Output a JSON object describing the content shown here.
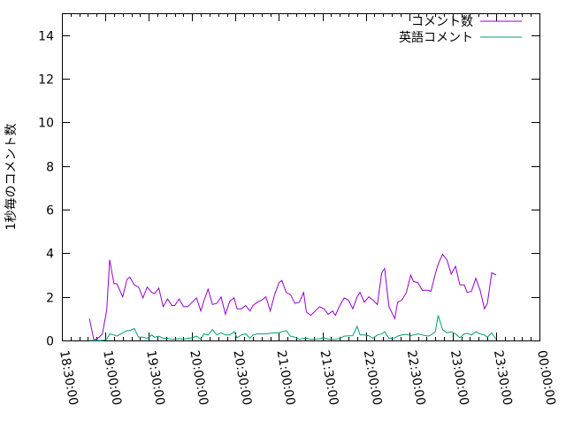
{
  "chart_data": {
    "type": "line",
    "title": "",
    "xlabel": "",
    "ylabel": "1秒毎のコメント数",
    "xlim": [
      "18:30:00",
      "00:00:00"
    ],
    "ylim": [
      0,
      15
    ],
    "x_ticks": [
      "18:30:00",
      "19:00:00",
      "19:30:00",
      "20:00:00",
      "20:30:00",
      "21:00:00",
      "21:30:00",
      "22:00:00",
      "22:30:00",
      "23:00:00",
      "23:30:00",
      "00:00:00"
    ],
    "y_ticks": [
      "0",
      "2",
      "4",
      "6",
      "8",
      "10",
      "12",
      "14"
    ],
    "grid": false,
    "legend_position": "top-right",
    "x": [
      "18:49",
      "18:52",
      "18:54",
      "18:58",
      "19:01",
      "19:03",
      "19:06",
      "19:08",
      "19:12",
      "19:15",
      "19:17",
      "19:20",
      "19:23",
      "19:26",
      "19:29",
      "19:32",
      "19:34",
      "19:37",
      "19:40",
      "19:43",
      "19:46",
      "19:48",
      "19:51",
      "19:54",
      "19:57",
      "20:00",
      "20:03",
      "20:06",
      "20:08",
      "20:11",
      "20:14",
      "20:17",
      "20:20",
      "20:23",
      "20:26",
      "20:29",
      "20:31",
      "20:34",
      "20:37",
      "20:40",
      "20:42",
      "20:45",
      "20:48",
      "20:51",
      "20:54",
      "20:57",
      "21:00",
      "21:02",
      "21:05",
      "21:08",
      "21:11",
      "21:14",
      "21:17",
      "21:19",
      "21:22",
      "21:25",
      "21:28",
      "21:31",
      "21:34",
      "21:37",
      "21:39",
      "21:42",
      "21:45",
      "21:48",
      "21:51",
      "21:54",
      "21:56",
      "21:59",
      "22:02",
      "22:05",
      "22:08",
      "22:11",
      "22:13",
      "22:16",
      "22:20",
      "22:22",
      "22:25",
      "22:28",
      "22:31",
      "22:33",
      "22:36",
      "22:39",
      "22:43",
      "22:45",
      "22:48",
      "22:50",
      "22:53",
      "22:56",
      "22:59",
      "23:02",
      "23:05",
      "23:08",
      "23:10",
      "23:13",
      "23:16",
      "23:19",
      "23:22",
      "23:24",
      "23:27",
      "23:30"
    ],
    "series": [
      {
        "name": "コメント数",
        "color": "#9400d3",
        "values": [
          1.0,
          0.05,
          0.05,
          0.3,
          1.4,
          3.7,
          2.6,
          2.6,
          2.0,
          2.8,
          2.9,
          2.55,
          2.45,
          1.95,
          2.45,
          2.2,
          2.15,
          2.4,
          1.55,
          1.9,
          1.6,
          1.6,
          1.9,
          1.55,
          1.55,
          1.75,
          1.95,
          1.35,
          1.8,
          2.35,
          1.65,
          1.7,
          2.0,
          1.2,
          1.8,
          1.95,
          1.45,
          1.45,
          1.6,
          1.35,
          1.6,
          1.75,
          1.85,
          2.0,
          1.35,
          2.1,
          2.65,
          2.75,
          2.2,
          2.1,
          1.7,
          1.75,
          2.2,
          1.3,
          1.15,
          1.35,
          1.55,
          1.45,
          1.2,
          1.35,
          1.15,
          1.6,
          1.95,
          1.85,
          1.45,
          2.0,
          2.2,
          1.75,
          2.0,
          1.85,
          1.65,
          3.1,
          3.3,
          1.55,
          1.0,
          1.75,
          1.85,
          2.2,
          3.0,
          2.7,
          2.65,
          2.3,
          2.3,
          2.25,
          3.05,
          3.5,
          3.95,
          3.7,
          3.05,
          3.4,
          2.55,
          2.55,
          2.2,
          2.25,
          2.85,
          2.3,
          1.45,
          1.7,
          3.1,
          3.0
        ]
      },
      {
        "name": "英語コメント",
        "color": "#009e73",
        "values": [
          0,
          0,
          0,
          0,
          0.05,
          0.3,
          0.25,
          0.2,
          0.35,
          0.45,
          0.45,
          0.55,
          0.15,
          0.15,
          0.1,
          0.25,
          0.15,
          0.2,
          0.1,
          0.1,
          0.05,
          0.06,
          0.08,
          0.06,
          0.1,
          0.12,
          0.2,
          0.06,
          0.3,
          0.25,
          0.5,
          0.25,
          0.35,
          0.25,
          0.25,
          0.4,
          0.12,
          0.25,
          0.3,
          0.1,
          0.25,
          0.3,
          0.3,
          0.3,
          0.33,
          0.35,
          0.35,
          0.4,
          0.45,
          0.2,
          0.15,
          0.05,
          0.1,
          0.1,
          0.05,
          0.06,
          0.08,
          0.12,
          0.06,
          0.05,
          0.05,
          0.1,
          0.2,
          0.21,
          0.22,
          0.65,
          0.25,
          0.25,
          0.22,
          0.1,
          0.25,
          0.3,
          0.4,
          0.1,
          0.12,
          0.2,
          0.25,
          0.28,
          0.22,
          0.25,
          0.3,
          0.25,
          0.2,
          0.25,
          0.4,
          1.15,
          0.5,
          0.35,
          0.4,
          0.3,
          0.12,
          0.3,
          0.33,
          0.25,
          0.4,
          0.3,
          0.25,
          0.15,
          0.35,
          0.05
        ]
      }
    ]
  }
}
